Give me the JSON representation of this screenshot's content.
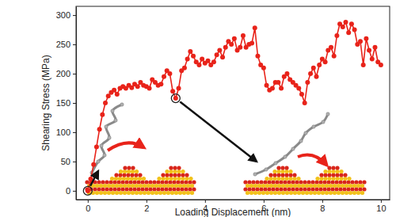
{
  "chart_data": {
    "type": "line",
    "x_label": "Loading Displacement (nm)",
    "y_label": "Shearing Stress (MPa)",
    "x": [
      0,
      0.1,
      0.2,
      0.3,
      0.4,
      0.5,
      0.6,
      0.7,
      0.8,
      0.9,
      1.0,
      1.1,
      1.2,
      1.3,
      1.4,
      1.5,
      1.6,
      1.7,
      1.8,
      1.9,
      2.0,
      2.1,
      2.2,
      2.3,
      2.4,
      2.5,
      2.6,
      2.7,
      2.8,
      2.9,
      3.0,
      3.1,
      3.2,
      3.3,
      3.4,
      3.5,
      3.6,
      3.7,
      3.8,
      3.9,
      4.0,
      4.1,
      4.2,
      4.3,
      4.4,
      4.5,
      4.6,
      4.7,
      4.8,
      4.9,
      5.0,
      5.1,
      5.2,
      5.3,
      5.4,
      5.5,
      5.6,
      5.7,
      5.8,
      5.9,
      6.0,
      6.1,
      6.2,
      6.3,
      6.4,
      6.5,
      6.6,
      6.7,
      6.8,
      6.9,
      7.0,
      7.1,
      7.2,
      7.3,
      7.4,
      7.5,
      7.6,
      7.7,
      7.8,
      7.9,
      8.0,
      8.1,
      8.2,
      8.3,
      8.4,
      8.5,
      8.6,
      8.7,
      8.8,
      8.9,
      9.0,
      9.1,
      9.2,
      9.3,
      9.4,
      9.5,
      9.6,
      9.7,
      9.8,
      9.9,
      10.0
    ],
    "series": [
      {
        "name": "Shearing stress",
        "color": "#e8231a",
        "marker": "circle",
        "line_style": "solid",
        "values": [
          0,
          20,
          45,
          75,
          105,
          130,
          150,
          162,
          168,
          172,
          165,
          175,
          178,
          175,
          180,
          176,
          182,
          178,
          185,
          180,
          178,
          175,
          190,
          185,
          180,
          182,
          195,
          205,
          200,
          170,
          158,
          175,
          205,
          210,
          225,
          238,
          230,
          220,
          215,
          225,
          218,
          222,
          215,
          220,
          232,
          240,
          228,
          245,
          255,
          250,
          260,
          240,
          245,
          265,
          245,
          250,
          252,
          278,
          230,
          215,
          210,
          180,
          172,
          175,
          185,
          185,
          175,
          195,
          200,
          190,
          185,
          180,
          175,
          165,
          150,
          185,
          200,
          210,
          195,
          215,
          225,
          220,
          240,
          245,
          230,
          265,
          285,
          280,
          288,
          270,
          285,
          275,
          250,
          255,
          215,
          260,
          240,
          225,
          245,
          220,
          215
        ]
      }
    ],
    "xlim": [
      -0.4,
      10.3
    ],
    "xticks": [
      0,
      2,
      4,
      6,
      8,
      10
    ],
    "ylim": [
      -15,
      315
    ],
    "yticks": [
      0,
      50,
      100,
      150,
      200,
      250,
      300
    ],
    "grid": false
  }
}
